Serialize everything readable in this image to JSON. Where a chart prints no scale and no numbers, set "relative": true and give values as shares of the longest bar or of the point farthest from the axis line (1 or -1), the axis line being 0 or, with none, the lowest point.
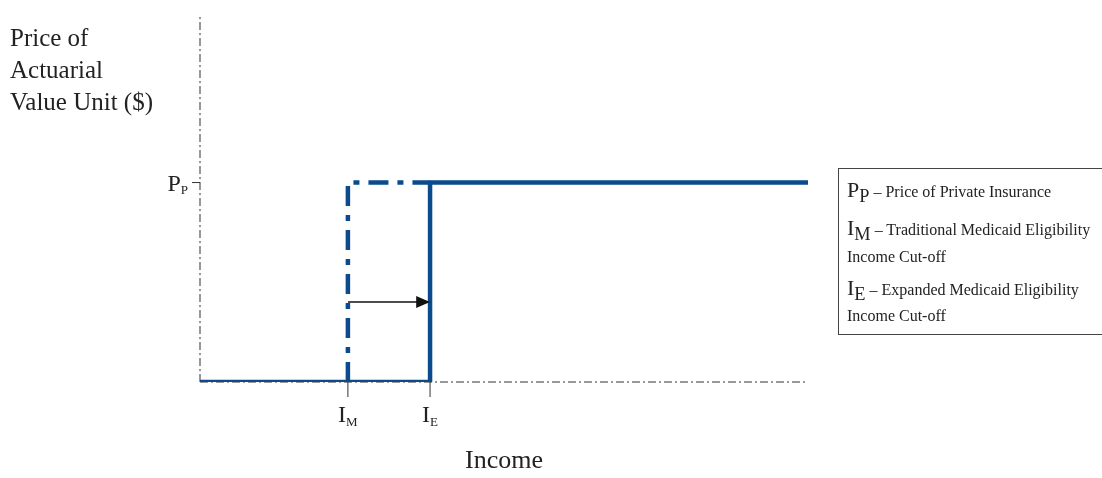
{
  "chart_data": {
    "type": "step",
    "relative": true,
    "xlabel": "Income",
    "ylabel": "Price of Actuarial Value Unit ($)",
    "categories": [
      null,
      null,
      null,
      null,
      null,
      null,
      null,
      null,
      null,
      "I$_{M}$",
      null,
      null,
      null,
      null,
      "I$_{E}$",
      null,
      null,
      null,
      null,
      null,
      null,
      null,
      null,
      null,
      null,
      null,
      null,
      null,
      null,
      null,
      null,
      null,
      null,
      null,
      null,
      null,
      null,
      null
    ],
    "grid": false,
    "legend": false,
    "marker": "none",
    "series": [
      {
        "color": "#0b4a8c",
        "line_style": "dashed",
        "values": [
          null,
          null,
          null,
          null,
          null,
          null,
          null,
          null,
          null,
          0,
          1,
          1,
          1,
          1,
          1,
          null,
          null,
          null,
          null,
          null,
          null,
          null,
          null,
          null,
          null,
          null,
          null,
          null,
          null,
          null,
          null,
          null,
          null,
          null,
          null,
          null,
          null,
          null
        ]
      },
      {
        "color": "#0b4a8c",
        "line_style": "solid",
        "values": [
          0,
          0,
          0,
          0,
          0,
          0,
          0,
          0,
          0,
          0,
          0,
          0,
          0,
          0,
          0,
          1,
          1,
          1,
          1,
          1,
          1,
          1,
          1,
          1,
          1,
          1,
          1,
          1,
          1,
          1,
          1,
          1,
          1,
          1,
          1,
          1,
          1,
          1
        ]
      }
    ],
    "annotations": [
      "P$_{P}$",
      "P$_{P}$ – Price of Private Insurance",
      "I$_{M}$ – Traditional Medicaid Eligibility Income Cut-off",
      "I$_{E}$ – Expanded Medicaid Eligibility Income Cut-off"
    ]
  }
}
